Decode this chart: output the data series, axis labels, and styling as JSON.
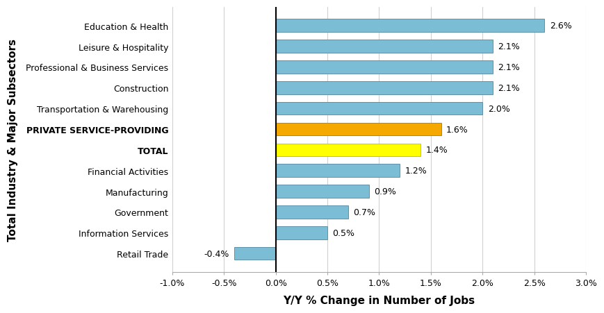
{
  "categories": [
    "Education & Health",
    "Leisure & Hospitality",
    "Professional & Business Services",
    "Construction",
    "Transportation & Warehousing",
    "PRIVATE SERVICE-PROVIDING",
    "TOTAL",
    "Financial Activities",
    "Manufacturing",
    "Government",
    "Information Services",
    "Retail Trade"
  ],
  "values": [
    2.6,
    2.1,
    2.1,
    2.1,
    2.0,
    1.6,
    1.4,
    1.2,
    0.9,
    0.7,
    0.5,
    -0.4
  ],
  "bar_colors": [
    "#7bbdd4",
    "#7bbdd4",
    "#7bbdd4",
    "#7bbdd4",
    "#7bbdd4",
    "#f5a800",
    "#ffff00",
    "#7bbdd4",
    "#7bbdd4",
    "#7bbdd4",
    "#7bbdd4",
    "#7bbdd4"
  ],
  "bar_edge_colors": [
    "#6090a8",
    "#6090a8",
    "#6090a8",
    "#6090a8",
    "#6090a8",
    "#c88000",
    "#c8c800",
    "#6090a8",
    "#6090a8",
    "#6090a8",
    "#6090a8",
    "#6090a8"
  ],
  "labels": [
    "2.6%",
    "2.1%",
    "2.1%",
    "2.1%",
    "2.0%",
    "1.6%",
    "1.4%",
    "1.2%",
    "0.9%",
    "0.7%",
    "0.5%",
    "-0.4%"
  ],
  "xlabel": "Y/Y % Change in Number of Jobs",
  "ylabel": "Total Industry & Major Subsectors",
  "xlim": [
    -1.0,
    3.0
  ],
  "xticks": [
    -1.0,
    -0.5,
    0.0,
    0.5,
    1.0,
    1.5,
    2.0,
    2.5,
    3.0
  ],
  "xtick_labels": [
    "-1.0%",
    "-0.5%",
    "0.0%",
    "0.5%",
    "1.0%",
    "1.5%",
    "2.0%",
    "2.5%",
    "3.0%"
  ],
  "background_color": "#ffffff",
  "grid_color": "#d0d0d0",
  "bold_categories": [
    "PRIVATE SERVICE-PROVIDING",
    "TOTAL"
  ]
}
